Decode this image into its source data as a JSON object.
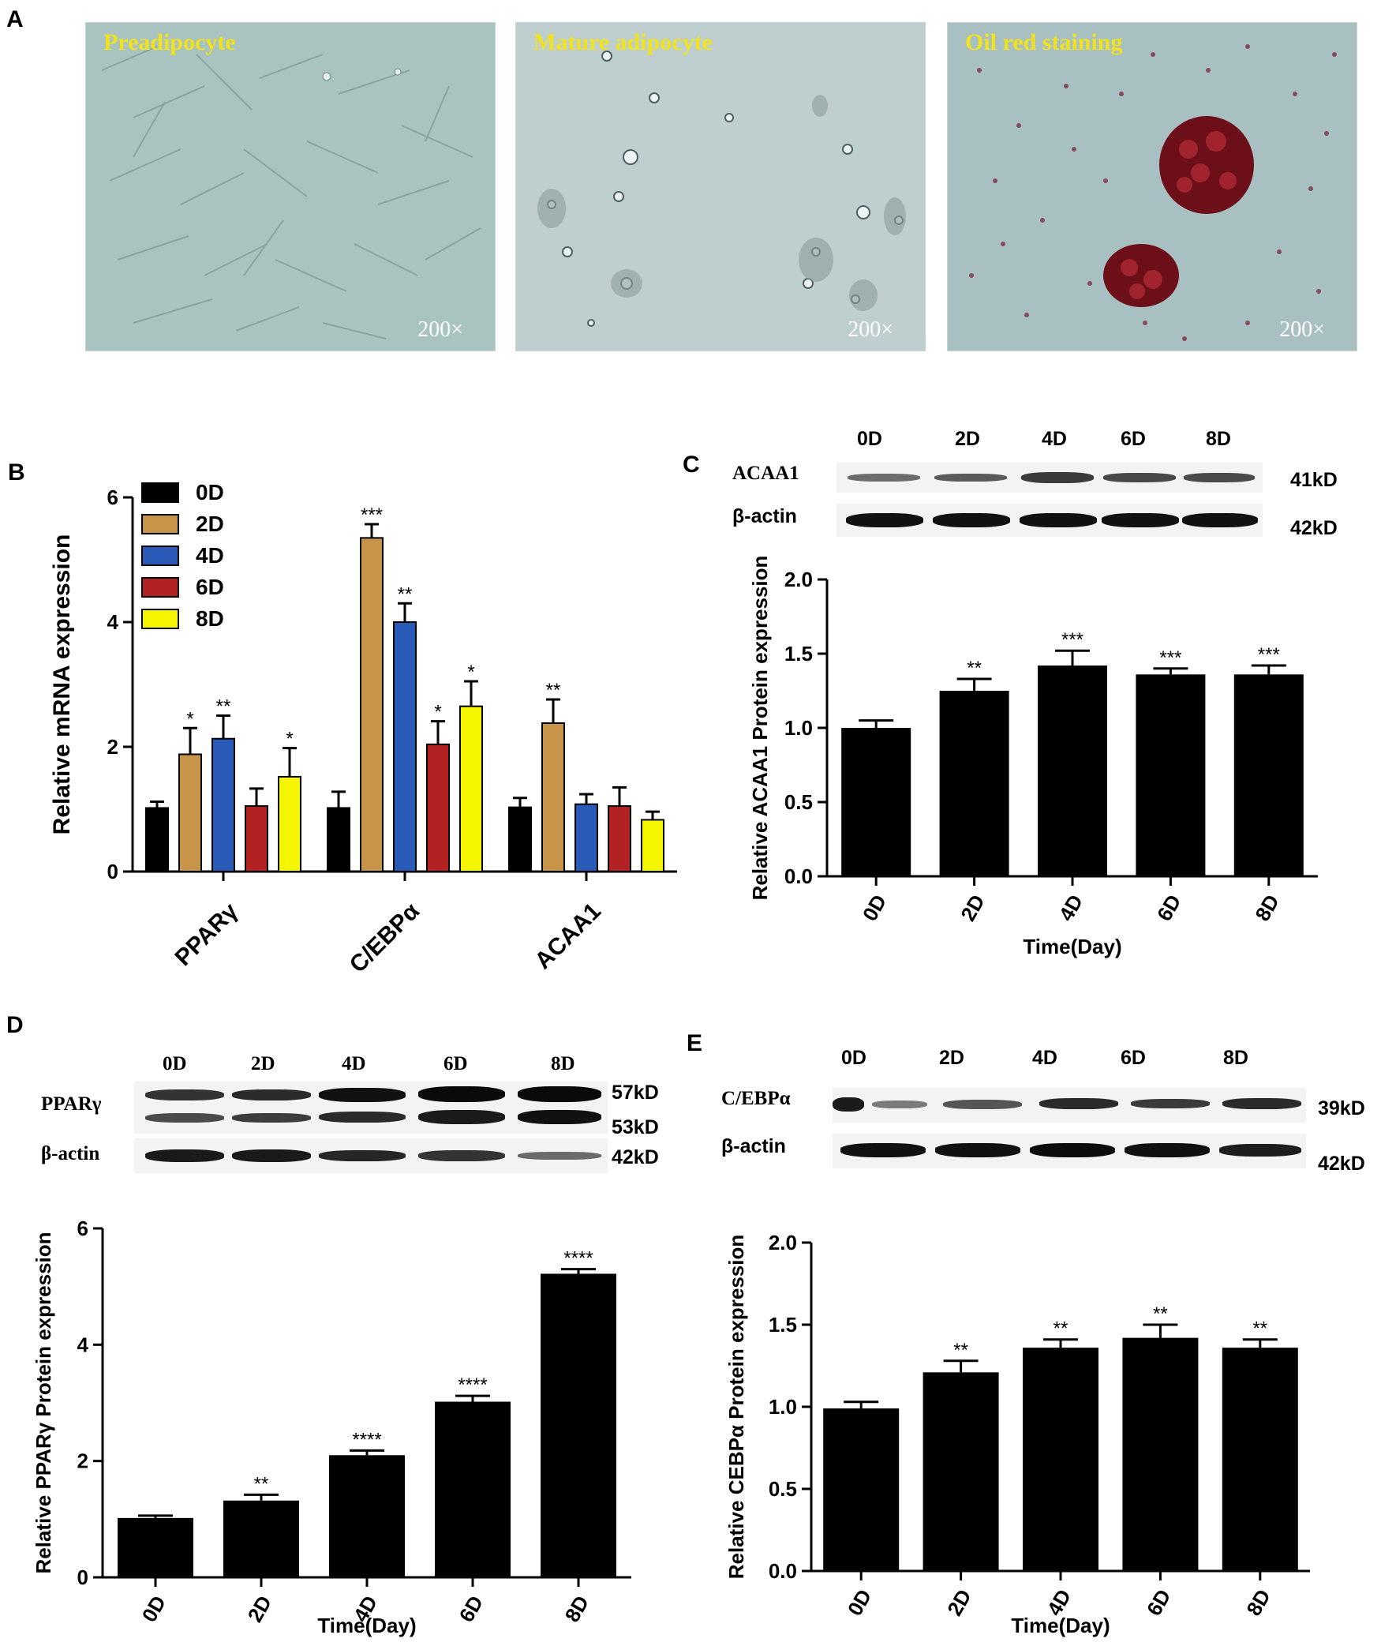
{
  "panel_letters": {
    "a": "A",
    "b": "B",
    "c": "C",
    "d": "D",
    "e": "E"
  },
  "panel_a": {
    "images": [
      {
        "title": "Preadipocyte",
        "scale": "200×"
      },
      {
        "title": "Mature adipocyte",
        "scale": "200×"
      },
      {
        "title": "Oil red staining",
        "scale": "200×"
      }
    ]
  },
  "blots": {
    "c": {
      "lanes": [
        "0D",
        "2D",
        "4D",
        "6D",
        "8D"
      ],
      "rows": [
        {
          "label": "ACAA1",
          "kd": "41kD"
        },
        {
          "label": "β-actin",
          "kd": "42kD"
        }
      ]
    },
    "d": {
      "lanes": [
        "0D",
        "2D",
        "4D",
        "6D",
        "8D"
      ],
      "rows": [
        {
          "label": "PPARγ",
          "kd": "57kD",
          "kd2": "53kD"
        },
        {
          "label": "β-actin",
          "kd": "42kD"
        }
      ]
    },
    "e": {
      "lanes": [
        "0D",
        "2D",
        "4D",
        "6D",
        "8D"
      ],
      "rows": [
        {
          "label": "C/EBPα",
          "kd": "39kD"
        },
        {
          "label": "β-actin",
          "kd": "42kD"
        }
      ]
    }
  },
  "chart_data": [
    {
      "panel": "B",
      "type": "bar",
      "categories": [
        "PPARγ",
        "C/EBPα",
        "ACAA1"
      ],
      "ylabel": "Relative mRNA expression",
      "ylim": [
        0,
        6
      ],
      "yticks": [
        0,
        2,
        4,
        6
      ],
      "legend_position": "top-left",
      "series": [
        {
          "name": "0D",
          "color": "#000000",
          "values": [
            1.02,
            1.02,
            1.03
          ],
          "errors": [
            0.1,
            0.26,
            0.15
          ],
          "sig": [
            "",
            "",
            ""
          ]
        },
        {
          "name": "2D",
          "color": "#c8944a",
          "values": [
            1.88,
            5.35,
            2.38
          ],
          "errors": [
            0.42,
            0.22,
            0.38
          ],
          "sig": [
            "*",
            "***",
            "**"
          ]
        },
        {
          "name": "4D",
          "color": "#2a5ab8",
          "values": [
            2.13,
            4.0,
            1.08
          ],
          "errors": [
            0.37,
            0.3,
            0.16
          ],
          "sig": [
            "**",
            "**",
            ""
          ]
        },
        {
          "name": "6D",
          "color": "#b22222",
          "values": [
            1.05,
            2.04,
            1.05
          ],
          "errors": [
            0.28,
            0.37,
            0.3
          ],
          "sig": [
            "",
            "*",
            ""
          ]
        },
        {
          "name": "8D",
          "color": "#f5f500",
          "values": [
            1.52,
            2.65,
            0.83
          ],
          "errors": [
            0.46,
            0.4,
            0.13
          ],
          "sig": [
            "*",
            "*",
            ""
          ]
        }
      ]
    },
    {
      "panel": "C",
      "type": "bar",
      "categories": [
        "0D",
        "2D",
        "4D",
        "6D",
        "8D"
      ],
      "values": [
        1.0,
        1.25,
        1.42,
        1.36,
        1.36
      ],
      "errors": [
        0.05,
        0.08,
        0.1,
        0.04,
        0.06
      ],
      "sig": [
        "",
        "**",
        "***",
        "***",
        "***"
      ],
      "ylabel": "Relative ACAA1 Protein expression",
      "xlabel": "Time(Day)",
      "ylim": [
        0,
        2.0
      ],
      "yticks": [
        0.0,
        0.5,
        1.0,
        1.5,
        2.0
      ]
    },
    {
      "panel": "D",
      "type": "bar",
      "categories": [
        "0D",
        "2D",
        "4D",
        "6D",
        "8D"
      ],
      "values": [
        1.02,
        1.32,
        2.1,
        3.02,
        5.22
      ],
      "errors": [
        0.04,
        0.1,
        0.08,
        0.1,
        0.08
      ],
      "sig": [
        "",
        "**",
        "****",
        "****",
        "****"
      ],
      "ylabel": "Relative PPARγ Protein expression",
      "xlabel": "Time(Day)",
      "ylim": [
        0,
        6
      ],
      "yticks": [
        0,
        2,
        4,
        6
      ]
    },
    {
      "panel": "E",
      "type": "bar",
      "categories": [
        "0D",
        "2D",
        "4D",
        "6D",
        "8D"
      ],
      "values": [
        0.99,
        1.21,
        1.36,
        1.42,
        1.36
      ],
      "errors": [
        0.04,
        0.07,
        0.05,
        0.08,
        0.05
      ],
      "sig": [
        "",
        "**",
        "**",
        "**",
        "**"
      ],
      "ylabel": "Relative CEBPα Protein expression",
      "xlabel": "Time(Day)",
      "ylim": [
        0,
        2.0
      ],
      "yticks": [
        0.0,
        0.5,
        1.0,
        1.5,
        2.0
      ]
    }
  ]
}
